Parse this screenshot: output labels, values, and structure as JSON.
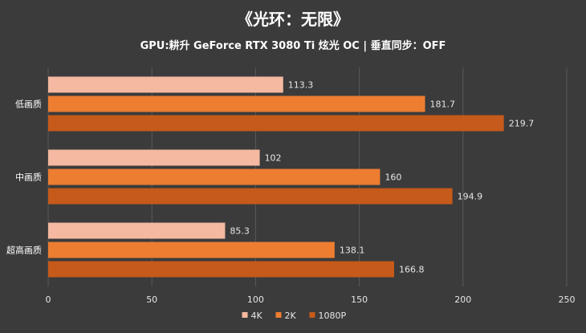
{
  "title": "《光环：无限》",
  "subtitle": "GPU:耕升 GeForce RTX 3080 Ti 炫光 OC | 垂直同步：OFF",
  "colors": {
    "background": "#3b3b3b",
    "grid": "#5a5a5a",
    "series": [
      "#f4b9a0",
      "#ed7d31",
      "#c55a1a"
    ]
  },
  "chart_data": {
    "type": "bar",
    "orientation": "horizontal",
    "categories": [
      "低画质",
      "中画质",
      "超高画质"
    ],
    "series": [
      {
        "name": "4K",
        "values": [
          113.3,
          102,
          85.3
        ]
      },
      {
        "name": "2K",
        "values": [
          181.7,
          160,
          138.1
        ]
      },
      {
        "name": "1080P",
        "values": [
          219.7,
          194.9,
          166.8
        ]
      }
    ],
    "xlim": [
      0,
      250
    ],
    "xticks": [
      0,
      50,
      100,
      150,
      200,
      250
    ],
    "grid": "vertical",
    "legend_position": "bottom"
  }
}
